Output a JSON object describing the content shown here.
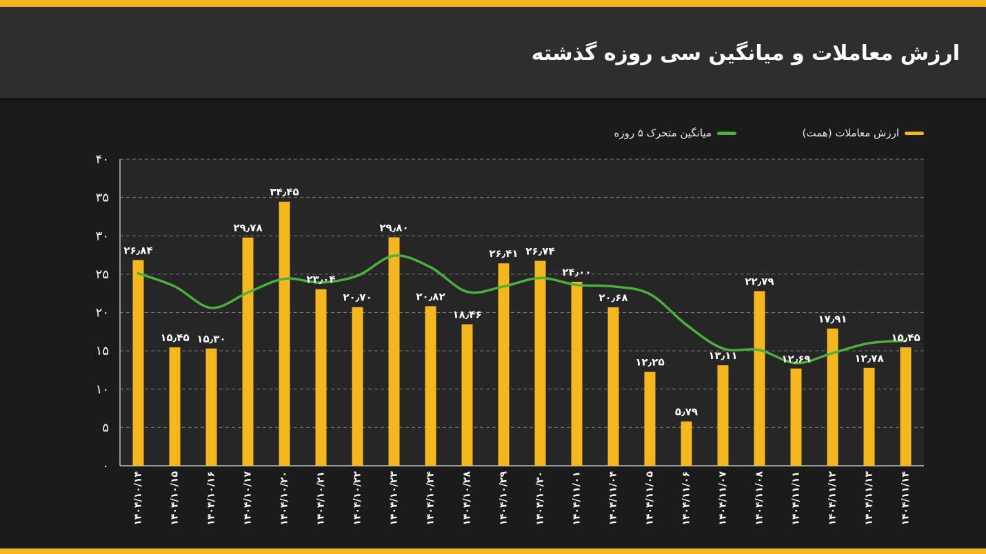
{
  "header": {
    "title": "ارزش معاملات و میانگین سی روزه گذشته"
  },
  "colors": {
    "bar": "#f5b71f",
    "line": "#4caf3e",
    "accent": "#f5b71f"
  },
  "chart_data": {
    "type": "bar",
    "title": "ارزش معاملات و میانگین سی روزه گذشته",
    "xlabel": "",
    "ylabel": "",
    "ylim": [
      0,
      40
    ],
    "yticks": [
      0,
      5,
      10,
      15,
      20,
      25,
      30,
      35,
      40
    ],
    "ytick_labels": [
      "۰",
      "۵",
      "۱۰",
      "۱۵",
      "۲۰",
      "۲۵",
      "۳۰",
      "۳۵",
      "۴۰"
    ],
    "grid": true,
    "legend_position": "top",
    "categories": [
      "۱۴۰۴/۱۰/۱۴",
      "۱۴۰۴/۱۰/۱۵",
      "۱۴۰۴/۱۰/۱۶",
      "۱۴۰۴/۱۰/۱۷",
      "۱۴۰۴/۱۰/۲۰",
      "۱۴۰۴/۱۰/۲۱",
      "۱۴۰۴/۱۰/۲۲",
      "۱۴۰۴/۱۰/۲۳",
      "۱۴۰۴/۱۰/۲۴",
      "۱۴۰۴/۱۰/۲۸",
      "۱۴۰۴/۱۰/۲۹",
      "۱۴۰۴/۱۰/۳۰",
      "۱۴۰۴/۱۱/۰۱",
      "۱۴۰۴/۱۱/۰۴",
      "۱۴۰۴/۱۱/۰۵",
      "۱۴۰۴/۱۱/۰۶",
      "۱۴۰۴/۱۱/۰۷",
      "۱۴۰۴/۱۱/۰۸",
      "۱۴۰۴/۱۱/۱۱",
      "۱۴۰۴/۱۱/۱۲",
      "۱۴۰۴/۱۱/۱۳",
      "۱۴۰۴/۱۱/۱۴"
    ],
    "series": [
      {
        "name": "ارزش معاملات (همت)",
        "type": "bar",
        "values": [
          26.84,
          15.45,
          15.3,
          29.78,
          34.45,
          23.04,
          20.7,
          29.8,
          20.82,
          18.46,
          26.41,
          26.74,
          24.0,
          20.68,
          12.25,
          5.79,
          13.11,
          22.79,
          12.69,
          17.91,
          12.78,
          15.45
        ],
        "labels": [
          "۲۶٫۸۴",
          "۱۵٫۴۵",
          "۱۵٫۳۰",
          "۲۹٫۷۸",
          "۳۴٫۴۵",
          "۲۳٫۰۴",
          "۲۰٫۷۰",
          "۲۹٫۸۰",
          "۲۰٫۸۲",
          "۱۸٫۴۶",
          "۲۶٫۴۱",
          "۲۶٫۷۴",
          "۲۴٫۰۰",
          "۲۰٫۶۸",
          "۱۲٫۲۵",
          "۵٫۷۹",
          "۱۳٫۱۱",
          "۲۲٫۷۹",
          "۱۲٫۶۹",
          "۱۷٫۹۱",
          "۱۲٫۷۸",
          "۱۵٫۴۵"
        ]
      },
      {
        "name": "میانگین متحرک ۵ روزه",
        "type": "line",
        "values": [
          25.1,
          23.4,
          20.6,
          22.6,
          24.4,
          23.9,
          24.8,
          27.4,
          25.9,
          22.7,
          23.4,
          24.5,
          23.6,
          23.4,
          22.4,
          18.4,
          15.3,
          15.1,
          13.4,
          14.7,
          16.0,
          16.3
        ]
      }
    ]
  }
}
